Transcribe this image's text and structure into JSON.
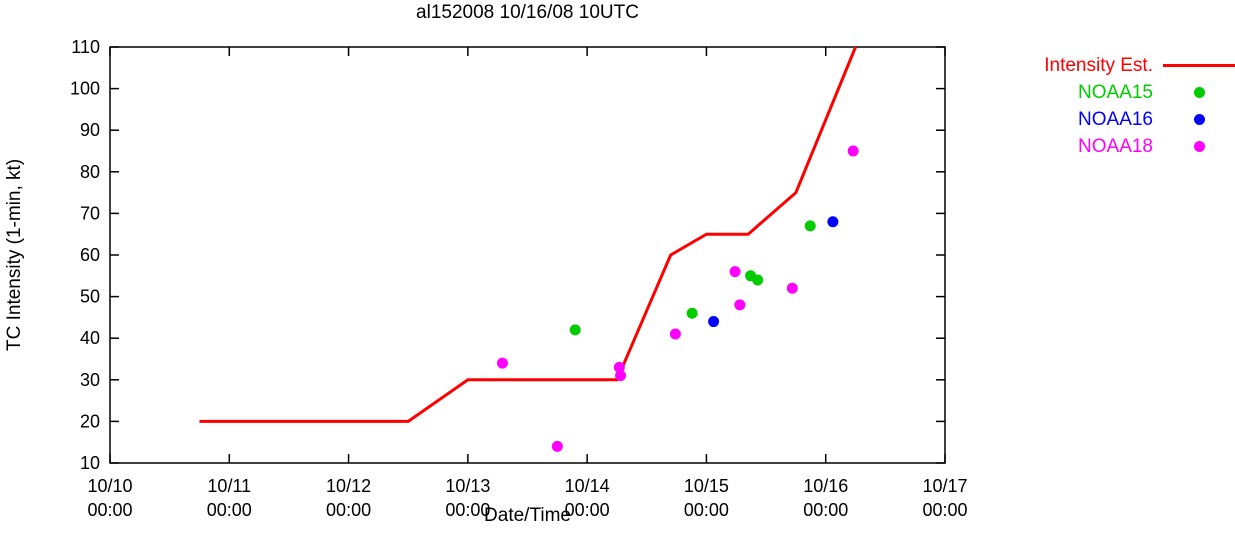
{
  "chart_data": {
    "type": "line",
    "title": "al152008 10/16/08 10UTC",
    "xlabel": "Date/Time",
    "ylabel": "TC Intensity (1-min, kt)",
    "ylim": [
      10,
      110
    ],
    "y_ticks": [
      10,
      20,
      30,
      40,
      50,
      60,
      70,
      80,
      90,
      100,
      110
    ],
    "xlim_days": [
      0,
      7
    ],
    "x_ticks": [
      {
        "pos": 0,
        "line1": "10/10",
        "line2": "00:00"
      },
      {
        "pos": 1,
        "line1": "10/11",
        "line2": "00:00"
      },
      {
        "pos": 2,
        "line1": "10/12",
        "line2": "00:00"
      },
      {
        "pos": 3,
        "line1": "10/13",
        "line2": "00:00"
      },
      {
        "pos": 4,
        "line1": "10/14",
        "line2": "00:00"
      },
      {
        "pos": 5,
        "line1": "10/15",
        "line2": "00:00"
      },
      {
        "pos": 6,
        "line1": "10/16",
        "line2": "00:00"
      },
      {
        "pos": 7,
        "line1": "10/17",
        "line2": "00:00"
      }
    ],
    "grid": false,
    "legend_position": "top-right-outside",
    "series": [
      {
        "name": "Intensity Est.",
        "type": "line",
        "color": "#ff0000",
        "points": [
          [
            0.75,
            20
          ],
          [
            2.5,
            20
          ],
          [
            3.0,
            30
          ],
          [
            4.25,
            30
          ],
          [
            4.7,
            60
          ],
          [
            5.0,
            65
          ],
          [
            5.35,
            65
          ],
          [
            5.75,
            75
          ],
          [
            6.25,
            110
          ]
        ]
      },
      {
        "name": "NOAA15",
        "type": "scatter",
        "color": "#00cc00",
        "points": [
          [
            3.9,
            42
          ],
          [
            4.88,
            46
          ],
          [
            5.37,
            55
          ],
          [
            5.43,
            54
          ],
          [
            5.87,
            67
          ]
        ]
      },
      {
        "name": "NOAA16",
        "type": "scatter",
        "color": "#0000ff",
        "points": [
          [
            5.06,
            44
          ],
          [
            6.06,
            68
          ]
        ]
      },
      {
        "name": "NOAA18",
        "type": "scatter",
        "color": "#ff00ff",
        "points": [
          [
            3.29,
            34
          ],
          [
            3.75,
            14
          ],
          [
            4.27,
            33
          ],
          [
            4.28,
            31
          ],
          [
            4.74,
            41
          ],
          [
            5.24,
            56
          ],
          [
            5.28,
            48
          ],
          [
            5.72,
            52
          ],
          [
            6.23,
            85
          ]
        ]
      }
    ]
  }
}
